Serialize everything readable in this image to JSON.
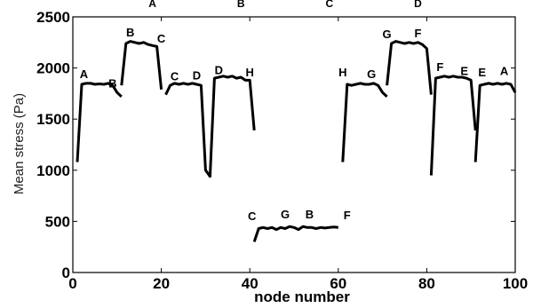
{
  "chart_data": {
    "type": "line",
    "title": "",
    "xlabel": "node number",
    "ylabel": "Mean stress (Pa)",
    "xlim": [
      0,
      100
    ],
    "ylim": [
      0,
      2500
    ],
    "xticks": [
      "0",
      "20",
      "40",
      "60",
      "80",
      "100"
    ],
    "yticks": [
      "0",
      "500",
      "1000",
      "1500",
      "2000",
      "2500"
    ],
    "grid": false,
    "top_annotations": [
      {
        "text": "A",
        "x": 20
      },
      {
        "text": "B",
        "x": 40
      },
      {
        "text": "C",
        "x": 60
      },
      {
        "text": "D",
        "x": 80
      }
    ],
    "point_annotations": [
      {
        "text": "A",
        "x": 2.5,
        "y": 1900
      },
      {
        "text": "B",
        "x": 9,
        "y": 1810
      },
      {
        "text": "B",
        "x": 13,
        "y": 2310
      },
      {
        "text": "C",
        "x": 20,
        "y": 2250
      },
      {
        "text": "C",
        "x": 23,
        "y": 1880
      },
      {
        "text": "D",
        "x": 28,
        "y": 1890
      },
      {
        "text": "D",
        "x": 33,
        "y": 1940
      },
      {
        "text": "H",
        "x": 40,
        "y": 1920
      },
      {
        "text": "C",
        "x": 40.5,
        "y": 510
      },
      {
        "text": "G",
        "x": 48,
        "y": 530
      },
      {
        "text": "B",
        "x": 53.5,
        "y": 530
      },
      {
        "text": "F",
        "x": 62,
        "y": 520
      },
      {
        "text": "H",
        "x": 61,
        "y": 1920
      },
      {
        "text": "G",
        "x": 67.5,
        "y": 1900
      },
      {
        "text": "G",
        "x": 71,
        "y": 2290
      },
      {
        "text": "F",
        "x": 78,
        "y": 2300
      },
      {
        "text": "F",
        "x": 83,
        "y": 1970
      },
      {
        "text": "E",
        "x": 88.5,
        "y": 1930
      },
      {
        "text": "E",
        "x": 92.5,
        "y": 1920
      },
      {
        "text": "A",
        "x": 97.5,
        "y": 1930
      }
    ],
    "series": [
      {
        "x": [
          1,
          2,
          3,
          4,
          5,
          6,
          7,
          8,
          9,
          10,
          11
        ],
        "y": [
          1080,
          1840,
          1850,
          1850,
          1840,
          1845,
          1840,
          1850,
          1830,
          1760,
          1720
        ]
      },
      {
        "x": [
          11,
          12,
          13,
          14,
          15,
          16,
          17,
          18,
          19,
          20
        ],
        "y": [
          1830,
          2240,
          2260,
          2250,
          2240,
          2250,
          2230,
          2220,
          2210,
          1790
        ]
      },
      {
        "x": [
          21,
          22,
          23,
          24,
          25,
          26,
          27,
          28,
          29,
          30,
          31
        ],
        "y": [
          1740,
          1830,
          1850,
          1840,
          1850,
          1840,
          1850,
          1840,
          1830,
          1000,
          940
        ]
      },
      {
        "x": [
          31,
          32,
          33,
          34,
          35,
          36,
          37,
          38,
          39,
          40,
          41
        ],
        "y": [
          930,
          1900,
          1910,
          1920,
          1910,
          1920,
          1900,
          1910,
          1880,
          1880,
          1390
        ]
      },
      {
        "x": [
          41,
          42,
          43,
          44,
          45,
          46,
          47,
          48,
          49,
          50,
          51,
          52,
          53,
          54,
          55,
          56,
          57,
          58,
          59,
          60
        ],
        "y": [
          300,
          430,
          440,
          430,
          440,
          420,
          440,
          430,
          450,
          440,
          420,
          450,
          440,
          440,
          430,
          440,
          435,
          440,
          445,
          440
        ]
      },
      {
        "x": [
          61,
          62,
          63,
          64,
          65,
          66,
          67,
          68,
          69,
          70,
          71
        ],
        "y": [
          1080,
          1840,
          1830,
          1840,
          1850,
          1840,
          1840,
          1850,
          1830,
          1760,
          1720
        ]
      },
      {
        "x": [
          71,
          72,
          73,
          74,
          75,
          76,
          77,
          78,
          79,
          80,
          81
        ],
        "y": [
          1830,
          2240,
          2260,
          2250,
          2240,
          2250,
          2240,
          2250,
          2230,
          2190,
          1740
        ]
      },
      {
        "x": [
          81,
          82,
          83,
          84,
          85,
          86,
          87,
          88,
          89,
          90,
          91
        ],
        "y": [
          950,
          1900,
          1910,
          1920,
          1910,
          1920,
          1910,
          1910,
          1900,
          1880,
          1390
        ]
      },
      {
        "x": [
          91,
          92,
          93,
          94,
          95,
          96,
          97,
          98,
          99,
          100
        ],
        "y": [
          1080,
          1830,
          1840,
          1850,
          1840,
          1850,
          1840,
          1850,
          1840,
          1760
        ]
      }
    ]
  }
}
